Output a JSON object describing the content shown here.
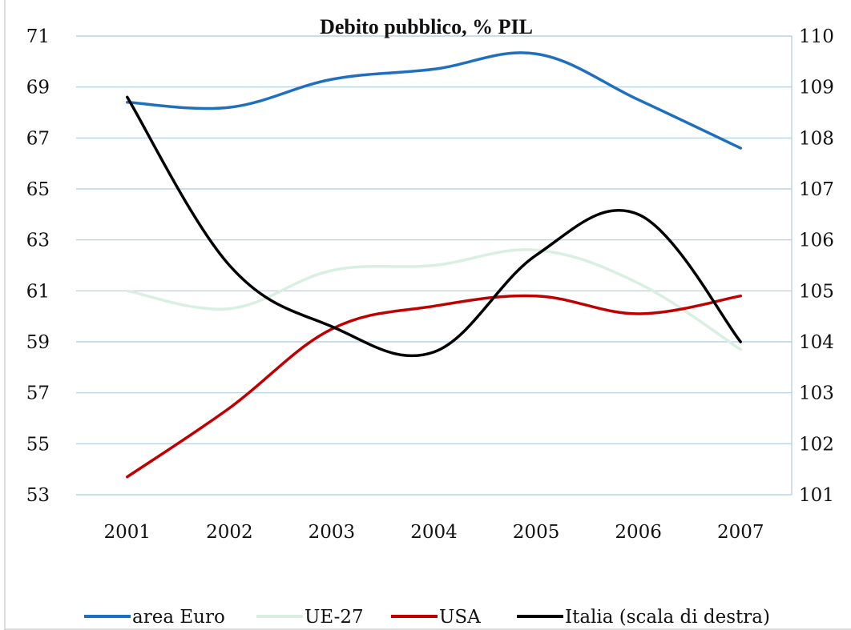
{
  "chart_data": {
    "type": "line",
    "title": "Debito pubblico, % PIL",
    "categories": [
      "2001",
      "2002",
      "2003",
      "2004",
      "2005",
      "2006",
      "2007"
    ],
    "y_left": {
      "min": 53,
      "max": 71,
      "ticks": [
        53,
        55,
        57,
        59,
        61,
        63,
        65,
        67,
        69,
        71
      ]
    },
    "y_right": {
      "min": 101,
      "max": 110,
      "ticks": [
        101,
        102,
        103,
        104,
        105,
        106,
        107,
        108,
        109,
        110
      ]
    },
    "grid": true,
    "legend_position": "bottom",
    "series": [
      {
        "name": "area Euro",
        "axis": "left",
        "color": "#1f6fbf",
        "values": [
          68.4,
          68.2,
          69.3,
          69.7,
          70.3,
          68.5,
          66.6
        ]
      },
      {
        "name": "UE-27",
        "axis": "left",
        "color": "#d8efe2",
        "values": [
          61.0,
          60.3,
          61.8,
          62.0,
          62.6,
          61.3,
          58.7
        ]
      },
      {
        "name": "USA",
        "axis": "left",
        "color": "#c00000",
        "values": [
          53.7,
          56.4,
          59.5,
          60.4,
          60.8,
          60.1,
          60.8
        ]
      },
      {
        "name": "Italia (scala di destra)",
        "axis": "right",
        "color": "#000000",
        "values": [
          108.8,
          105.5,
          104.3,
          103.8,
          105.7,
          106.5,
          104.0
        ]
      }
    ]
  }
}
